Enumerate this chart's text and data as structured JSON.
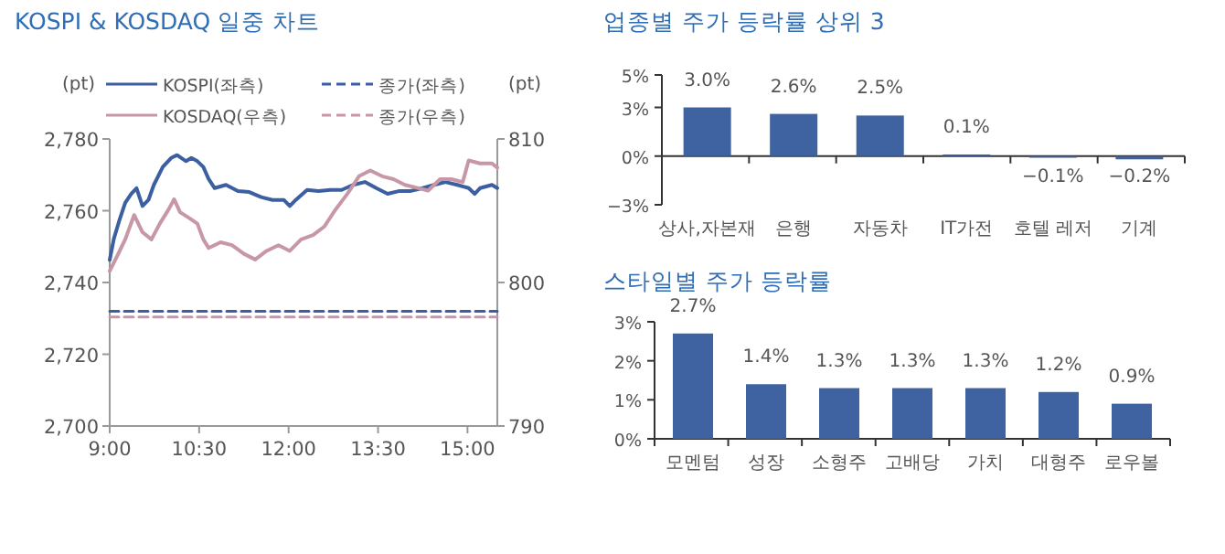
{
  "chart_data": [
    {
      "type": "line",
      "title": "KOSPI & KOSDAQ 일중 차트",
      "ylabel": "(pt)",
      "y2label": "(pt)",
      "legend": "top",
      "xlim": [
        9,
        15.5
      ],
      "xticks": [
        {
          "value": 9,
          "label": "9:00"
        },
        {
          "value": 10.5,
          "label": "10:30"
        },
        {
          "value": 12,
          "label": "12:00"
        },
        {
          "value": 13.5,
          "label": "13:30"
        },
        {
          "value": 15,
          "label": "15:00"
        }
      ],
      "ylim": [
        2700,
        2780
      ],
      "yticks": [
        {
          "value": 2700,
          "label": "2,700"
        },
        {
          "value": 2720,
          "label": "2,720"
        },
        {
          "value": 2740,
          "label": "2,740"
        },
        {
          "value": 2760,
          "label": "2,760"
        },
        {
          "value": 2780,
          "label": "2,780"
        }
      ],
      "y2lim": [
        790,
        810
      ],
      "y2ticks": [
        790,
        800,
        810
      ],
      "series": [
        {
          "name": "KOSPI(좌측)",
          "color": "#3b5fa0",
          "x": [
            9.0,
            9.07,
            9.16,
            9.26,
            9.36,
            9.45,
            9.55,
            9.65,
            9.74,
            9.89,
            10.03,
            10.13,
            10.28,
            10.37,
            10.47,
            10.57,
            10.66,
            10.76,
            10.95,
            11.15,
            11.34,
            11.54,
            11.73,
            11.92,
            12.02,
            12.12,
            12.31,
            12.5,
            12.7,
            12.89,
            13.08,
            13.28,
            13.47,
            13.66,
            13.86,
            14.05,
            14.25,
            14.44,
            14.63,
            14.83,
            15.02,
            15.12,
            15.21,
            15.41,
            15.5
          ],
          "values": [
            2746.3,
            2752.2,
            2757.2,
            2762.2,
            2764.7,
            2766.3,
            2761.3,
            2763.0,
            2767.2,
            2772.2,
            2774.7,
            2775.5,
            2773.8,
            2774.7,
            2773.8,
            2772.2,
            2768.8,
            2766.3,
            2767.2,
            2765.5,
            2765.2,
            2763.8,
            2763.0,
            2763.0,
            2761.3,
            2763.0,
            2765.8,
            2765.5,
            2765.8,
            2765.8,
            2767.2,
            2768.0,
            2766.3,
            2764.7,
            2765.5,
            2765.5,
            2766.3,
            2767.2,
            2768.0,
            2767.2,
            2766.3,
            2764.7,
            2766.3,
            2767.2,
            2766.3
          ]
        },
        {
          "name": "KOSDAQ(우측)",
          "color": "#c897a6",
          "axis": "y2",
          "x": [
            9.0,
            9.12,
            9.26,
            9.41,
            9.55,
            9.7,
            9.84,
            9.99,
            10.08,
            10.18,
            10.33,
            10.47,
            10.57,
            10.66,
            10.86,
            11.05,
            11.25,
            11.44,
            11.63,
            11.83,
            12.02,
            12.21,
            12.41,
            12.6,
            12.79,
            12.99,
            13.18,
            13.37,
            13.57,
            13.76,
            13.95,
            14.15,
            14.34,
            14.54,
            14.73,
            14.92,
            15.02,
            15.21,
            15.41,
            15.5
          ],
          "values": [
            800.8,
            801.8,
            803.0,
            804.7,
            803.5,
            803.0,
            804.1,
            805.1,
            805.8,
            804.9,
            804.5,
            804.1,
            803.0,
            802.4,
            802.8,
            802.6,
            802.0,
            801.6,
            802.2,
            802.6,
            802.2,
            803.0,
            803.3,
            803.9,
            805.1,
            806.2,
            807.4,
            807.8,
            807.4,
            807.2,
            806.8,
            806.6,
            806.4,
            807.2,
            807.2,
            807.0,
            808.5,
            808.3,
            808.3,
            808.0
          ]
        },
        {
          "name": "종가(좌측)",
          "color": "#3b5fa0",
          "line_style": "dashed",
          "x": [
            9,
            15.5
          ],
          "values": [
            2732,
            2732
          ]
        },
        {
          "name": "종가(우측)",
          "color": "#c897a6",
          "line_style": "dashed",
          "axis": "y2",
          "x": [
            9,
            15.5
          ],
          "values": [
            797.6,
            797.6
          ]
        }
      ]
    },
    {
      "type": "bar",
      "title": "업종별 주가 등락률 상위 3",
      "categories": [
        "상사,자본재",
        "은행",
        "자동차",
        "IT가전",
        "호텔 레저",
        "기계"
      ],
      "values": [
        3.0,
        2.6,
        2.5,
        0.1,
        -0.1,
        -0.2
      ],
      "value_labels": [
        "3.0%",
        "2.6%",
        "2.5%",
        "0.1%",
        "−0.1%",
        "−0.2%"
      ],
      "color": "#3f62a0",
      "ylim": [
        -3,
        5
      ],
      "yticks": [
        {
          "value": -3,
          "label": "−3%"
        },
        {
          "value": 0,
          "label": "0%"
        },
        {
          "value": 3,
          "label": "3%"
        },
        {
          "value": 5,
          "label": "5%"
        }
      ]
    },
    {
      "type": "bar",
      "title": "스타일별 주가 등락률",
      "categories": [
        "모멘텀",
        "성장",
        "소형주",
        "고배당",
        "가치",
        "대형주",
        "로우볼"
      ],
      "values": [
        2.7,
        1.4,
        1.3,
        1.3,
        1.3,
        1.2,
        0.9
      ],
      "value_labels": [
        "2.7%",
        "1.4%",
        "1.3%",
        "1.3%",
        "1.3%",
        "1.2%",
        "0.9%"
      ],
      "color": "#3f62a0",
      "ylim": [
        0,
        3
      ],
      "yticks": [
        {
          "value": 0,
          "label": "0%"
        },
        {
          "value": 1,
          "label": "1%"
        },
        {
          "value": 2,
          "label": "2%"
        },
        {
          "value": 3,
          "label": "3%"
        }
      ]
    }
  ]
}
